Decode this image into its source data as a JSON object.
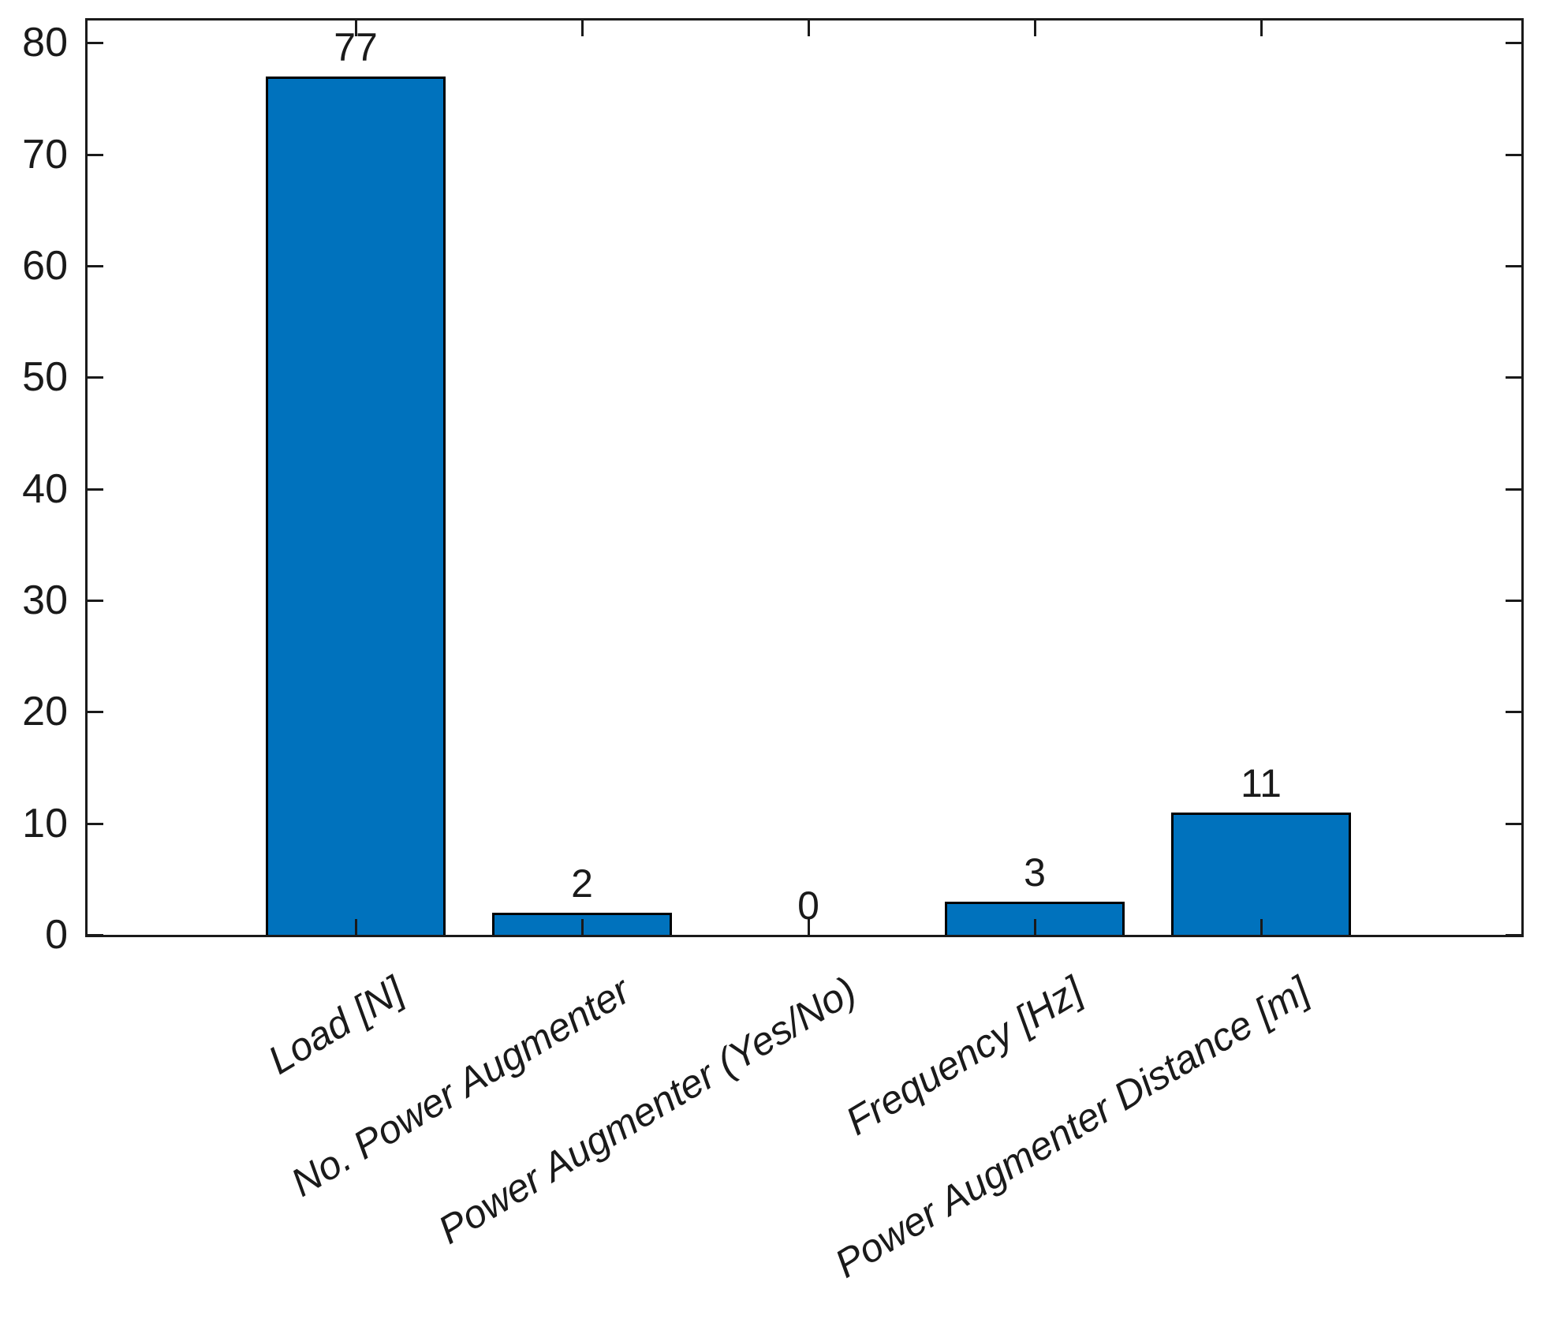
{
  "chart_data": {
    "type": "bar",
    "title": "",
    "xlabel": "",
    "ylabel": "",
    "categories": [
      "Load [N]",
      "No. Power Augmenter",
      "Power Augmenter (Yes/No)",
      "Frequency [Hz]",
      "Power Augmenter Distance [m]"
    ],
    "values": [
      77,
      2,
      0,
      3,
      11
    ],
    "value_labels": [
      "77",
      "2",
      "0",
      "3",
      "11"
    ],
    "y_ticks": [
      0,
      10,
      20,
      30,
      40,
      50,
      60,
      70,
      80
    ],
    "y_tick_labels": [
      "0",
      "10",
      "20",
      "30",
      "40",
      "50",
      "60",
      "70",
      "80"
    ],
    "ylim": [
      0,
      82
    ],
    "bar_color": "#0072BD",
    "bar_edge_color": "#000000",
    "axis_color": "#1a1a1a",
    "grid": false,
    "box": true,
    "tick_direction": "in",
    "x_label_rotation_deg": -31,
    "x_label_style": "italic",
    "legend": null
  }
}
